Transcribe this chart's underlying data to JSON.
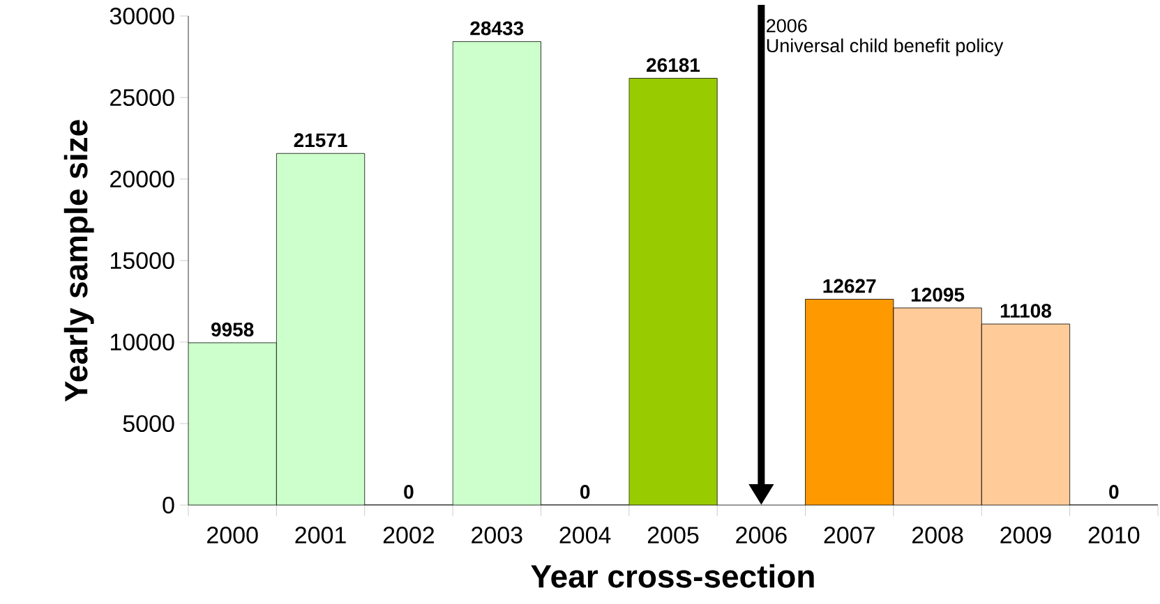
{
  "chart_data": {
    "type": "bar",
    "xlabel": "Year cross-section",
    "ylabel": "Yearly sample size",
    "categories": [
      "2000",
      "2001",
      "2002",
      "2003",
      "2004",
      "2005",
      "2006",
      "2007",
      "2008",
      "2009",
      "2010"
    ],
    "values": [
      9958,
      21571,
      0,
      28433,
      0,
      26181,
      null,
      12627,
      12095,
      11108,
      0
    ],
    "colors": [
      "#ccffcc",
      "#ccffcc",
      "#ccffcc",
      "#ccffcc",
      "#ccffcc",
      "#99cc00",
      "#ccffcc",
      "#ff9900",
      "#ffcc99",
      "#ffcc99",
      "#ffcc99"
    ],
    "ylim": [
      0,
      30000
    ],
    "yticks": [
      0,
      5000,
      10000,
      15000,
      20000,
      25000,
      30000
    ],
    "data_labels": true,
    "annotations": [
      "2006",
      "Universal child benefit policy"
    ]
  }
}
